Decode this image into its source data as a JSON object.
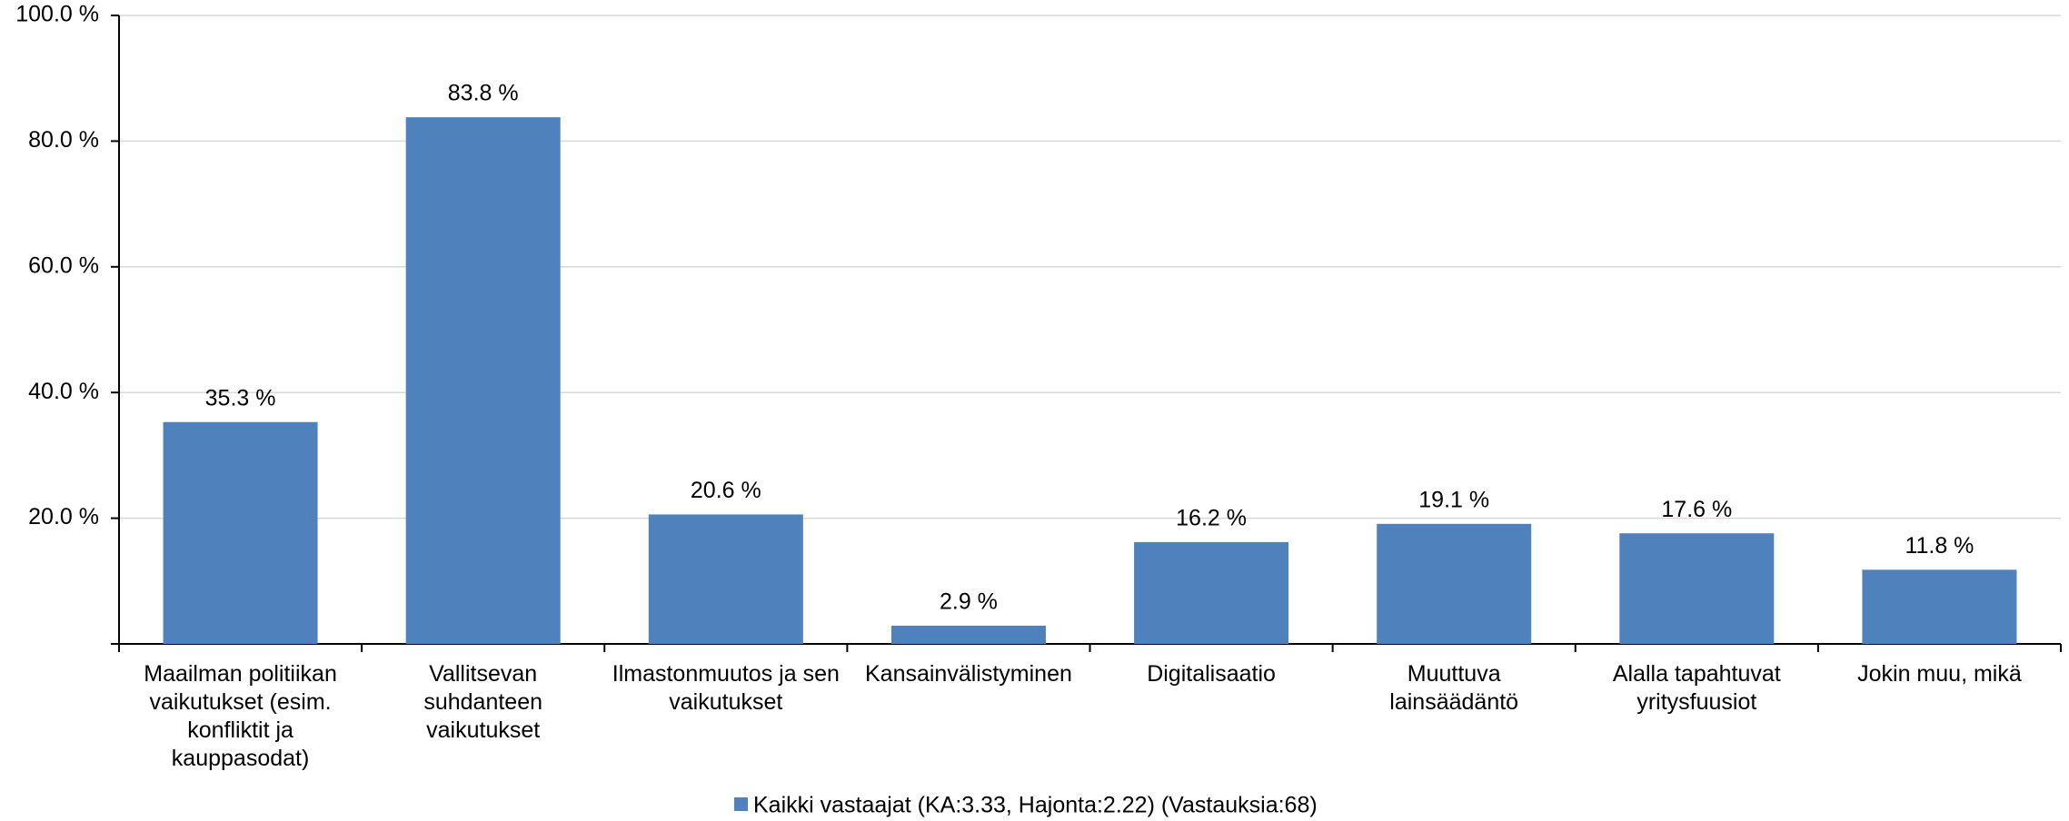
{
  "chart_data": {
    "type": "bar",
    "categories": [
      "Maailman politiikan vaikutukset (esim. konfliktit ja kauppasodat)",
      "Vallitsevan suhdanteen vaikutukset",
      "Ilmastonmuutos ja sen vaikutukset",
      "Kansainvälistyminen",
      "Digitalisaatio",
      "Muuttuva lainsäädäntö",
      "Alalla tapahtuvat yritysfuusiot",
      "Jokin muu, mikä"
    ],
    "series": [
      {
        "name": "Kaikki vastaajat (KA:3.33, Hajonta:2.22) (Vastauksia:68)",
        "color": "#4f81bd",
        "values": [
          35.3,
          83.8,
          20.6,
          2.9,
          16.2,
          19.1,
          17.6,
          11.8
        ],
        "value_labels": [
          "35.3 %",
          "83.8 %",
          "20.6 %",
          "2.9 %",
          "16.2 %",
          "19.1 %",
          "17.6 %",
          "11.8 %"
        ]
      }
    ],
    "ylim": [
      0,
      100
    ],
    "yticks": [
      {
        "value": 0,
        "label": ""
      },
      {
        "value": 20,
        "label": "20.0 %"
      },
      {
        "value": 40,
        "label": "40.0 %"
      },
      {
        "value": 60,
        "label": "60.0 %"
      },
      {
        "value": 80,
        "label": "80.0 %"
      },
      {
        "value": 100,
        "label": "100.0 %"
      }
    ],
    "grid": true,
    "legend": "bottom"
  }
}
